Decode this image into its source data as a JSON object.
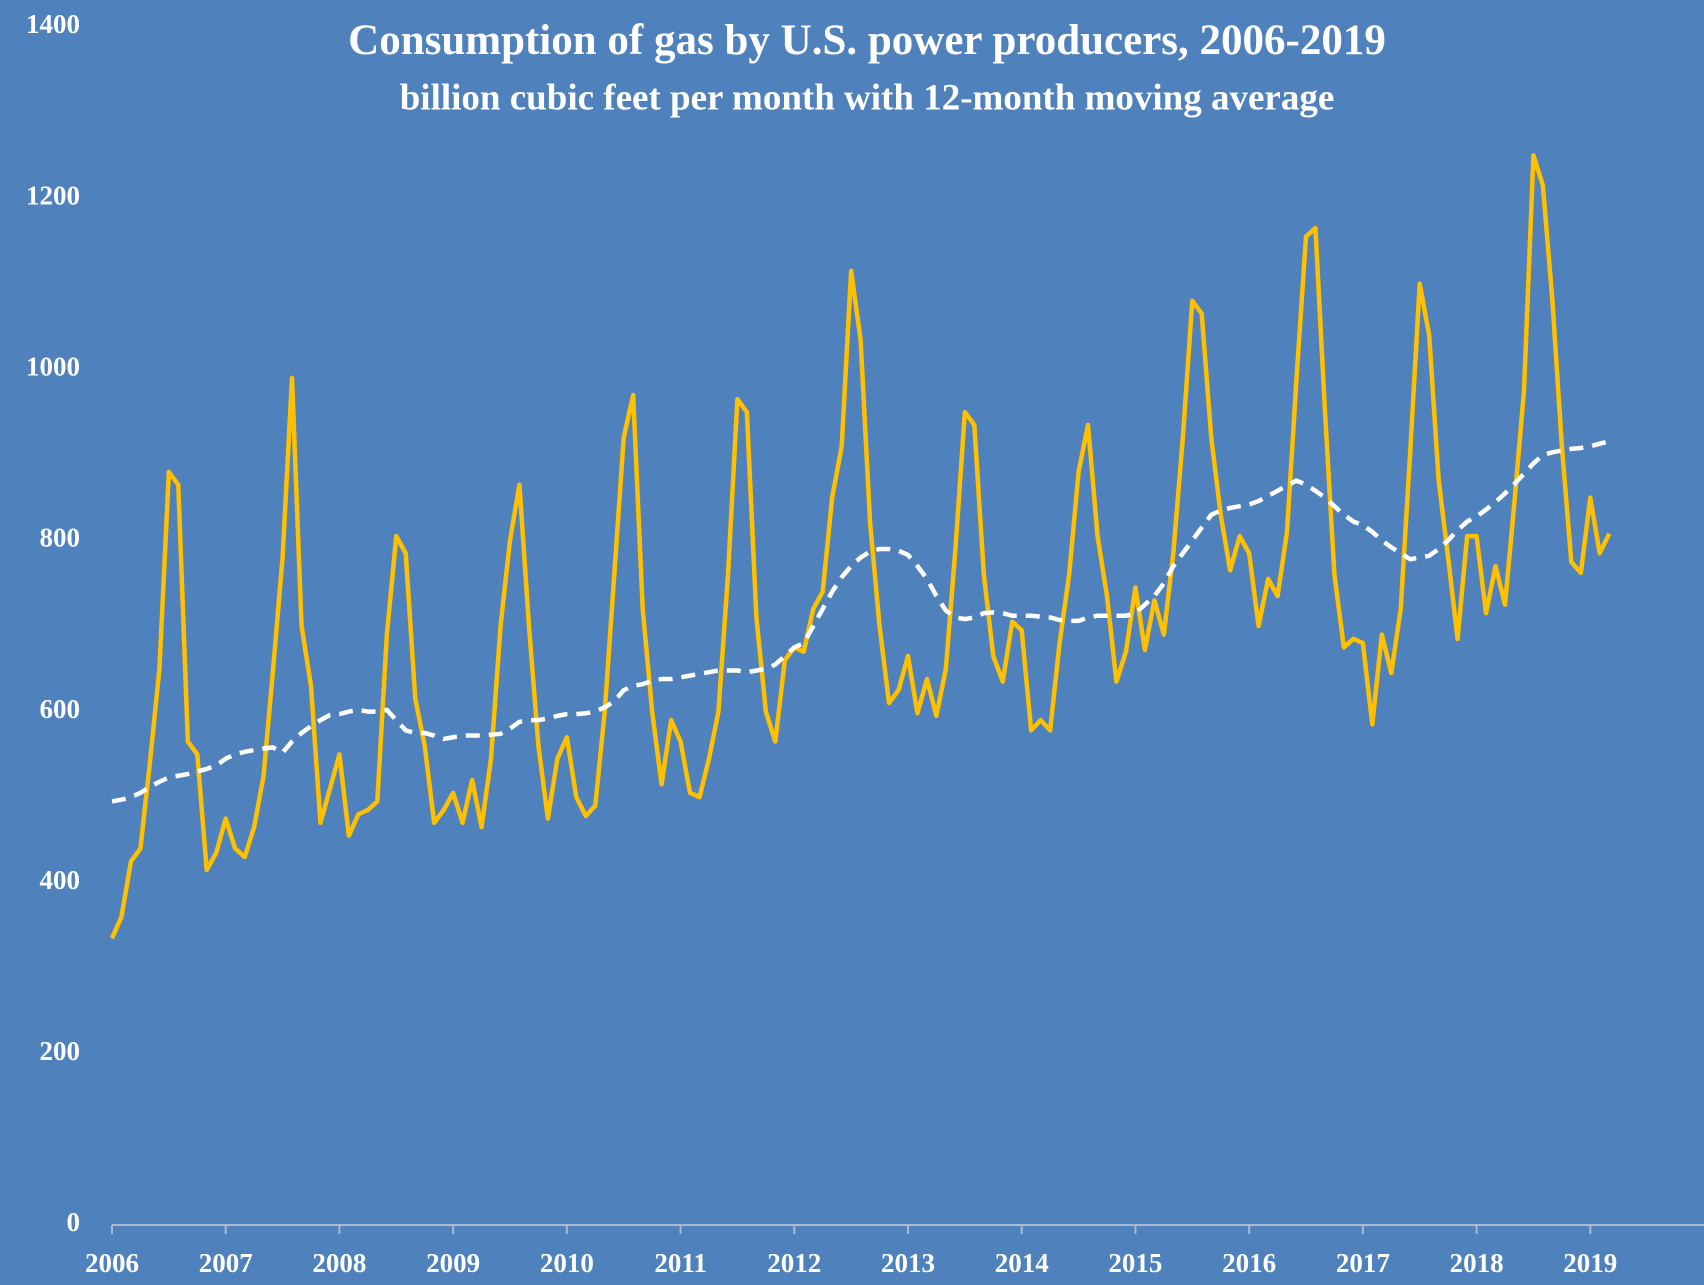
{
  "chart_data": {
    "type": "line",
    "title": "Consumption of  gas by U.S. power producers, 2006-2019",
    "subtitle": "billion cubic feet per month with 12-month moving average",
    "background": "#4f81bd",
    "xlim": [
      2006,
      2020
    ],
    "xticks": [
      2006,
      2007,
      2008,
      2009,
      2010,
      2011,
      2012,
      2013,
      2014,
      2015,
      2016,
      2017,
      2018,
      2019
    ],
    "ylim": [
      0,
      1400
    ],
    "yticks": [
      0,
      200,
      400,
      600,
      800,
      1000,
      1200,
      1400
    ],
    "x": [
      2006,
      2006.083,
      2006.167,
      2006.25,
      2006.333,
      2006.417,
      2006.5,
      2006.583,
      2006.667,
      2006.75,
      2006.833,
      2006.917,
      2007,
      2007.083,
      2007.167,
      2007.25,
      2007.333,
      2007.417,
      2007.5,
      2007.583,
      2007.667,
      2007.75,
      2007.833,
      2007.917,
      2008,
      2008.083,
      2008.167,
      2008.25,
      2008.333,
      2008.417,
      2008.5,
      2008.583,
      2008.667,
      2008.75,
      2008.833,
      2008.917,
      2009,
      2009.083,
      2009.167,
      2009.25,
      2009.333,
      2009.417,
      2009.5,
      2009.583,
      2009.667,
      2009.75,
      2009.833,
      2009.917,
      2010,
      2010.083,
      2010.167,
      2010.25,
      2010.333,
      2010.417,
      2010.5,
      2010.583,
      2010.667,
      2010.75,
      2010.833,
      2010.917,
      2011,
      2011.083,
      2011.167,
      2011.25,
      2011.333,
      2011.417,
      2011.5,
      2011.583,
      2011.667,
      2011.75,
      2011.833,
      2011.917,
      2012,
      2012.083,
      2012.167,
      2012.25,
      2012.333,
      2012.417,
      2012.5,
      2012.583,
      2012.667,
      2012.75,
      2012.833,
      2012.917,
      2013,
      2013.083,
      2013.167,
      2013.25,
      2013.333,
      2013.417,
      2013.5,
      2013.583,
      2013.667,
      2013.75,
      2013.833,
      2013.917,
      2014,
      2014.083,
      2014.167,
      2014.25,
      2014.333,
      2014.417,
      2014.5,
      2014.583,
      2014.667,
      2014.75,
      2014.833,
      2014.917,
      2015,
      2015.083,
      2015.167,
      2015.25,
      2015.333,
      2015.417,
      2015.5,
      2015.583,
      2015.667,
      2015.75,
      2015.833,
      2015.917,
      2016,
      2016.083,
      2016.167,
      2016.25,
      2016.333,
      2016.417,
      2016.5,
      2016.583,
      2016.667,
      2016.75,
      2016.833,
      2016.917,
      2017,
      2017.083,
      2017.167,
      2017.25,
      2017.333,
      2017.417,
      2017.5,
      2017.583,
      2017.667,
      2017.75,
      2017.833,
      2017.917,
      2018,
      2018.083,
      2018.167,
      2018.25,
      2018.333,
      2018.417,
      2018.5,
      2018.583,
      2018.667,
      2018.75,
      2018.833,
      2018.917,
      2019,
      2019.083,
      2019.167
    ],
    "series": [
      {
        "color": "#ffc000",
        "line_style": "solid",
        "values": [
          335,
          360,
          425,
          440,
          540,
          650,
          880,
          865,
          565,
          550,
          415,
          435,
          475,
          440,
          430,
          465,
          525,
          650,
          780,
          990,
          700,
          630,
          470,
          510,
          550,
          455,
          480,
          485,
          495,
          690,
          805,
          785,
          615,
          560,
          470,
          485,
          505,
          470,
          520,
          465,
          545,
          700,
          800,
          865,
          700,
          560,
          475,
          545,
          570,
          500,
          478,
          490,
          600,
          760,
          920,
          970,
          720,
          600,
          515,
          590,
          565,
          505,
          500,
          545,
          600,
          760,
          965,
          950,
          710,
          600,
          565,
          660,
          675,
          670,
          720,
          740,
          850,
          910,
          1115,
          1035,
          820,
          700,
          610,
          625,
          665,
          598,
          638,
          595,
          650,
          790,
          950,
          935,
          760,
          665,
          635,
          705,
          695,
          578,
          590,
          578,
          680,
          760,
          880,
          935,
          805,
          735,
          635,
          670,
          745,
          672,
          730,
          690,
          785,
          920,
          1080,
          1065,
          920,
          830,
          765,
          805,
          785,
          700,
          755,
          735,
          810,
          990,
          1155,
          1165,
          950,
          760,
          675,
          685,
          680,
          585,
          690,
          645,
          720,
          905,
          1100,
          1040,
          870,
          780,
          685,
          805,
          805,
          715,
          770,
          725,
          845,
          975,
          1250,
          1215,
          1080,
          910,
          775,
          762,
          850,
          785,
          808
        ]
      },
      {
        "color": "#ffffff",
        "line_style": "dashed",
        "values": [
          495,
          497,
          500,
          505,
          512,
          518,
          523,
          525,
          527,
          530,
          533,
          537,
          545,
          550,
          553,
          555,
          557,
          558,
          552,
          565,
          575,
          583,
          590,
          596,
          597,
          600,
          602,
          600,
          600,
          602,
          590,
          578,
          575,
          575,
          572,
          568,
          570,
          572,
          572,
          572,
          573,
          574,
          580,
          588,
          590,
          590,
          592,
          595,
          597,
          597,
          598,
          600,
          605,
          612,
          625,
          630,
          632,
          636,
          638,
          638,
          640,
          642,
          644,
          646,
          648,
          648,
          648,
          646,
          648,
          650,
          655,
          665,
          675,
          680,
          700,
          720,
          740,
          757,
          770,
          780,
          787,
          790,
          790,
          788,
          783,
          770,
          755,
          735,
          718,
          710,
          708,
          710,
          715,
          716,
          715,
          712,
          712,
          712,
          711,
          710,
          707,
          706,
          706,
          710,
          712,
          712,
          712,
          712,
          715,
          725,
          735,
          750,
          770,
          785,
          800,
          815,
          830,
          835,
          838,
          840,
          842,
          846,
          852,
          858,
          864,
          870,
          865,
          858,
          850,
          840,
          830,
          822,
          818,
          810,
          800,
          792,
          785,
          778,
          780,
          782,
          790,
          800,
          812,
          822,
          828,
          836,
          845,
          855,
          866,
          878,
          890,
          900,
          903,
          905,
          907,
          908,
          910,
          913,
          916
        ]
      }
    ]
  }
}
